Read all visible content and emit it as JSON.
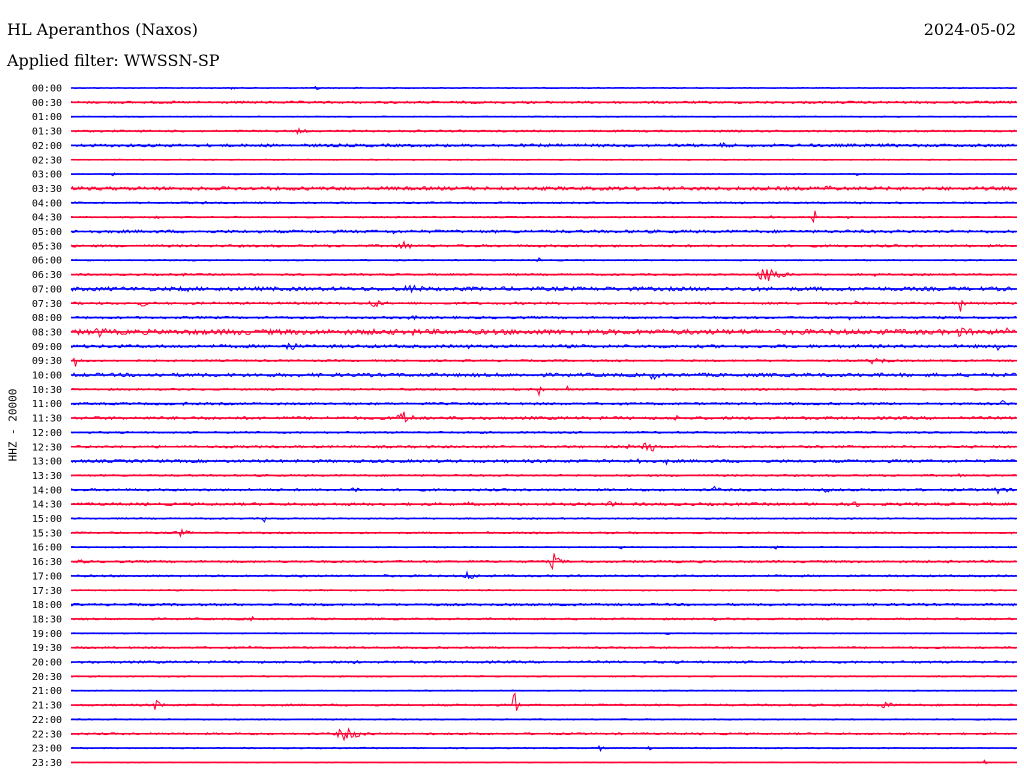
{
  "header": {
    "station": "HL Aperanthos (Naxos)",
    "date": "2024-05-02",
    "filter": "Applied filter: WWSSN-SP",
    "channel": "HHZ - 20000"
  },
  "colors": {
    "blue": "#0000ff",
    "red": "#ff0033"
  },
  "chart_data": {
    "type": "line",
    "kind": "helicorder",
    "title": "HL Aperanthos (Naxos)",
    "ylabel": "HHZ - 20000",
    "row_minutes": 30,
    "color_cycle": [
      "blue",
      "red"
    ],
    "rows": [
      {
        "label": "00:00",
        "color": "blue",
        "noise": 0.6,
        "events": [
          {
            "x": 0.26,
            "amp": 3,
            "w": 0.004
          },
          {
            "x": 0.17,
            "amp": 2,
            "w": 0.006
          },
          {
            "x": 0.3,
            "amp": 2,
            "w": 0.003
          }
        ]
      },
      {
        "label": "00:30",
        "color": "red",
        "noise": 1.2,
        "events": []
      },
      {
        "label": "01:00",
        "color": "blue",
        "noise": 0.6,
        "events": []
      },
      {
        "label": "01:30",
        "color": "red",
        "noise": 1.0,
        "events": [
          {
            "x": 0.24,
            "amp": 3,
            "w": 0.01
          }
        ]
      },
      {
        "label": "02:00",
        "color": "blue",
        "noise": 1.5,
        "events": [
          {
            "x": 0.69,
            "amp": 3,
            "w": 0.012
          }
        ]
      },
      {
        "label": "02:30",
        "color": "red",
        "noise": 0.6,
        "events": []
      },
      {
        "label": "03:00",
        "color": "blue",
        "noise": 0.6,
        "events": [
          {
            "x": 0.044,
            "amp": 5,
            "w": 0.002
          },
          {
            "x": 0.83,
            "amp": 3,
            "w": 0.002
          }
        ]
      },
      {
        "label": "03:30",
        "color": "red",
        "noise": 1.8,
        "events": [
          {
            "x": 0.8,
            "amp": 4,
            "w": 0.01
          },
          {
            "x": 0.62,
            "amp": 2,
            "w": 0.03
          }
        ]
      },
      {
        "label": "04:00",
        "color": "blue",
        "noise": 0.9,
        "events": [
          {
            "x": 0.14,
            "amp": 2,
            "w": 0.006
          },
          {
            "x": 0.835,
            "amp": 3,
            "w": 0.003
          }
        ]
      },
      {
        "label": "04:30",
        "color": "red",
        "noise": 0.8,
        "events": [
          {
            "x": 0.785,
            "amp": 14,
            "w": 0.002
          },
          {
            "x": 0.09,
            "amp": 3,
            "w": 0.003
          },
          {
            "x": 0.74,
            "amp": 2,
            "w": 0.003
          },
          {
            "x": 0.82,
            "amp": 2,
            "w": 0.004
          }
        ]
      },
      {
        "label": "05:00",
        "color": "blue",
        "noise": 1.5,
        "events": [
          {
            "x": 0.34,
            "amp": 3,
            "w": 0.005
          }
        ]
      },
      {
        "label": "05:30",
        "color": "red",
        "noise": 1.2,
        "events": [
          {
            "x": 0.35,
            "amp": 6,
            "w": 0.008
          },
          {
            "x": 0.5,
            "amp": 3,
            "w": 0.003
          }
        ]
      },
      {
        "label": "06:00",
        "color": "blue",
        "noise": 0.7,
        "events": [
          {
            "x": 0.495,
            "amp": 3,
            "w": 0.003
          }
        ]
      },
      {
        "label": "06:30",
        "color": "red",
        "noise": 1.0,
        "events": [
          {
            "x": 0.735,
            "amp": 10,
            "w": 0.012
          },
          {
            "x": 0.12,
            "amp": 3,
            "w": 0.002
          },
          {
            "x": 0.47,
            "amp": 3,
            "w": 0.002
          },
          {
            "x": 0.85,
            "amp": 3,
            "w": 0.002
          }
        ]
      },
      {
        "label": "07:00",
        "color": "blue",
        "noise": 2.0,
        "events": [
          {
            "x": 0.36,
            "amp": 5,
            "w": 0.015
          },
          {
            "x": 0.12,
            "amp": 3,
            "w": 0.02
          }
        ]
      },
      {
        "label": "07:30",
        "color": "red",
        "noise": 1.2,
        "events": [
          {
            "x": 0.32,
            "amp": 5,
            "w": 0.01
          },
          {
            "x": 0.94,
            "amp": 9,
            "w": 0.004
          },
          {
            "x": 0.075,
            "amp": 4,
            "w": 0.006
          },
          {
            "x": 0.83,
            "amp": 3,
            "w": 0.003
          }
        ]
      },
      {
        "label": "08:00",
        "color": "blue",
        "noise": 1.2,
        "events": [
          {
            "x": 0.825,
            "amp": 6,
            "w": 0.004
          },
          {
            "x": 0.36,
            "amp": 3,
            "w": 0.008
          }
        ]
      },
      {
        "label": "08:30",
        "color": "red",
        "noise": 2.6,
        "events": [
          {
            "x": 0.03,
            "amp": 6,
            "w": 0.01
          },
          {
            "x": 0.94,
            "amp": 5,
            "w": 0.02
          },
          {
            "x": 0.17,
            "amp": 4,
            "w": 0.02
          },
          {
            "x": 0.36,
            "amp": 4,
            "w": 0.015
          },
          {
            "x": 0.99,
            "amp": 5,
            "w": 0.003
          }
        ]
      },
      {
        "label": "09:00",
        "color": "blue",
        "noise": 1.6,
        "events": [
          {
            "x": 0.23,
            "amp": 7,
            "w": 0.008
          },
          {
            "x": 0.98,
            "amp": 5,
            "w": 0.003
          },
          {
            "x": 0.42,
            "amp": 3,
            "w": 0.003
          }
        ]
      },
      {
        "label": "09:30",
        "color": "red",
        "noise": 1.0,
        "events": [
          {
            "x": 0.005,
            "amp": 7,
            "w": 0.005
          },
          {
            "x": 0.85,
            "amp": 4,
            "w": 0.015
          },
          {
            "x": 0.58,
            "amp": 2,
            "w": 0.005
          },
          {
            "x": 0.385,
            "amp": 2,
            "w": 0.003
          }
        ]
      },
      {
        "label": "10:00",
        "color": "blue",
        "noise": 1.8,
        "events": [
          {
            "x": 0.615,
            "amp": 6,
            "w": 0.007
          },
          {
            "x": 0.09,
            "amp": 4,
            "w": 0.006
          }
        ]
      },
      {
        "label": "10:30",
        "color": "red",
        "noise": 1.0,
        "events": [
          {
            "x": 0.495,
            "amp": 14,
            "w": 0.002
          },
          {
            "x": 0.525,
            "amp": 5,
            "w": 0.002
          }
        ]
      },
      {
        "label": "11:00",
        "color": "blue",
        "noise": 1.2,
        "events": [
          {
            "x": 0.985,
            "amp": 4,
            "w": 0.006
          },
          {
            "x": 0.12,
            "amp": 2,
            "w": 0.01
          }
        ]
      },
      {
        "label": "11:30",
        "color": "red",
        "noise": 1.5,
        "events": [
          {
            "x": 0.35,
            "amp": 8,
            "w": 0.01
          },
          {
            "x": 0.64,
            "amp": 3,
            "w": 0.008
          }
        ]
      },
      {
        "label": "12:00",
        "color": "blue",
        "noise": 1.0,
        "events": []
      },
      {
        "label": "12:30",
        "color": "red",
        "noise": 1.2,
        "events": [
          {
            "x": 0.61,
            "amp": 8,
            "w": 0.008
          },
          {
            "x": 0.59,
            "amp": 5,
            "w": 0.004
          },
          {
            "x": 0.7,
            "amp": 2,
            "w": 0.003
          }
        ]
      },
      {
        "label": "13:00",
        "color": "blue",
        "noise": 1.5,
        "events": [
          {
            "x": 0.6,
            "amp": 9,
            "w": 0.003
          },
          {
            "x": 0.63,
            "amp": 5,
            "w": 0.002
          },
          {
            "x": 0.28,
            "amp": 2,
            "w": 0.002
          }
        ]
      },
      {
        "label": "13:30",
        "color": "red",
        "noise": 1.0,
        "events": [
          {
            "x": 0.94,
            "amp": 3,
            "w": 0.004
          }
        ]
      },
      {
        "label": "14:00",
        "color": "blue",
        "noise": 1.2,
        "events": [
          {
            "x": 0.3,
            "amp": 4,
            "w": 0.006
          },
          {
            "x": 0.68,
            "amp": 4,
            "w": 0.006
          },
          {
            "x": 0.8,
            "amp": 4,
            "w": 0.006
          },
          {
            "x": 0.98,
            "amp": 4,
            "w": 0.012
          },
          {
            "x": 0.55,
            "amp": 2,
            "w": 0.003
          }
        ]
      },
      {
        "label": "14:30",
        "color": "red",
        "noise": 1.4,
        "events": [
          {
            "x": 0.57,
            "amp": 3,
            "w": 0.012
          },
          {
            "x": 0.83,
            "amp": 3,
            "w": 0.01
          },
          {
            "x": 0.42,
            "amp": 3,
            "w": 0.003
          },
          {
            "x": 0.08,
            "amp": 2,
            "w": 0.005
          }
        ]
      },
      {
        "label": "15:00",
        "color": "blue",
        "noise": 0.8,
        "events": [
          {
            "x": 0.205,
            "amp": 4,
            "w": 0.004
          }
        ]
      },
      {
        "label": "15:30",
        "color": "red",
        "noise": 0.9,
        "events": [
          {
            "x": 0.115,
            "amp": 4,
            "w": 0.01
          },
          {
            "x": 0.44,
            "amp": 2,
            "w": 0.003
          }
        ]
      },
      {
        "label": "16:00",
        "color": "blue",
        "noise": 0.7,
        "events": [
          {
            "x": 0.58,
            "amp": 3,
            "w": 0.003
          },
          {
            "x": 0.745,
            "amp": 3,
            "w": 0.003
          }
        ]
      },
      {
        "label": "16:30",
        "color": "red",
        "noise": 1.2,
        "events": [
          {
            "x": 0.51,
            "amp": 9,
            "w": 0.006
          },
          {
            "x": 0.01,
            "amp": 3,
            "w": 0.006
          }
        ]
      },
      {
        "label": "17:00",
        "color": "blue",
        "noise": 1.0,
        "events": [
          {
            "x": 0.42,
            "amp": 5,
            "w": 0.008
          },
          {
            "x": 0.245,
            "amp": 3,
            "w": 0.004
          },
          {
            "x": 0.33,
            "amp": 3,
            "w": 0.002
          }
        ]
      },
      {
        "label": "17:30",
        "color": "red",
        "noise": 0.7,
        "events": []
      },
      {
        "label": "18:00",
        "color": "blue",
        "noise": 1.2,
        "events": []
      },
      {
        "label": "18:30",
        "color": "red",
        "noise": 1.0,
        "events": [
          {
            "x": 0.19,
            "amp": 4,
            "w": 0.004
          },
          {
            "x": 0.68,
            "amp": 2,
            "w": 0.005
          }
        ]
      },
      {
        "label": "19:00",
        "color": "blue",
        "noise": 0.6,
        "events": [
          {
            "x": 0.63,
            "amp": 2,
            "w": 0.003
          }
        ]
      },
      {
        "label": "19:30",
        "color": "red",
        "noise": 1.0,
        "events": [
          {
            "x": 0.19,
            "amp": 3,
            "w": 0.003
          }
        ]
      },
      {
        "label": "20:00",
        "color": "blue",
        "noise": 1.2,
        "events": [
          {
            "x": 0.3,
            "amp": 2,
            "w": 0.008
          }
        ]
      },
      {
        "label": "20:30",
        "color": "red",
        "noise": 0.7,
        "events": [
          {
            "x": 0.285,
            "amp": 2,
            "w": 0.003
          }
        ]
      },
      {
        "label": "21:00",
        "color": "blue",
        "noise": 0.6,
        "events": []
      },
      {
        "label": "21:30",
        "color": "red",
        "noise": 1.0,
        "events": [
          {
            "x": 0.468,
            "amp": 30,
            "w": 0.002
          },
          {
            "x": 0.09,
            "amp": 6,
            "w": 0.006
          },
          {
            "x": 0.86,
            "amp": 6,
            "w": 0.006
          }
        ]
      },
      {
        "label": "22:00",
        "color": "blue",
        "noise": 0.7,
        "events": [
          {
            "x": 0.19,
            "amp": 3,
            "w": 0.002
          }
        ]
      },
      {
        "label": "22:30",
        "color": "red",
        "noise": 1.0,
        "events": [
          {
            "x": 0.29,
            "amp": 7,
            "w": 0.015
          }
        ]
      },
      {
        "label": "23:00",
        "color": "blue",
        "noise": 0.7,
        "events": [
          {
            "x": 0.56,
            "amp": 3,
            "w": 0.006
          },
          {
            "x": 0.61,
            "amp": 4,
            "w": 0.003
          }
        ]
      },
      {
        "label": "23:30",
        "color": "red",
        "noise": 0.4,
        "events": [
          {
            "x": 0.965,
            "amp": 3,
            "w": 0.003
          }
        ]
      }
    ]
  }
}
